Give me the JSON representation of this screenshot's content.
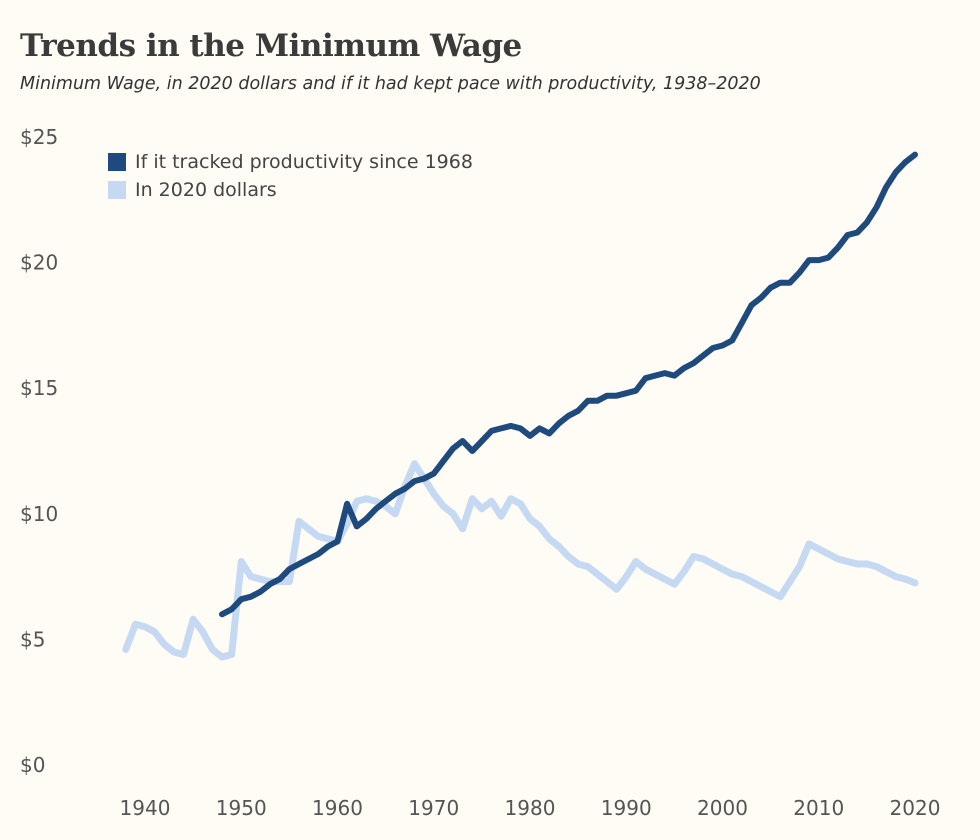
{
  "chart_data": {
    "type": "line",
    "title": "Trends in the Minimum Wage",
    "subtitle": "Minimum Wage, in 2020 dollars and if it had kept pace with productivity, 1938–2020",
    "xlabel": "",
    "ylabel": "",
    "xlim": [
      1936,
      2022
    ],
    "ylim": [
      0,
      25
    ],
    "x_ticks": [
      "1940",
      "1950",
      "1960",
      "1970",
      "1980",
      "1990",
      "2000",
      "2010",
      "2020"
    ],
    "y_ticks": [
      "$0",
      "$5",
      "$10",
      "$15",
      "$20",
      "$25"
    ],
    "grid": false,
    "legend_placement": "top-left",
    "series": [
      {
        "name": "If it tracked productivity since 1968",
        "color": "#1f4a7d",
        "start_year": 1948,
        "values": [
          6.0,
          6.2,
          6.6,
          6.7,
          6.9,
          7.2,
          7.4,
          7.8,
          8.0,
          8.2,
          8.4,
          8.7,
          8.9,
          10.4,
          9.5,
          9.8,
          10.2,
          10.5,
          10.8,
          11.0,
          11.3,
          11.4,
          11.6,
          12.1,
          12.6,
          12.9,
          12.5,
          12.9,
          13.3,
          13.4,
          13.5,
          13.4,
          13.1,
          13.4,
          13.2,
          13.6,
          13.9,
          14.1,
          14.5,
          14.5,
          14.7,
          14.7,
          14.8,
          14.9,
          15.4,
          15.5,
          15.6,
          15.5,
          15.8,
          16.0,
          16.3,
          16.6,
          16.7,
          16.9,
          17.6,
          18.3,
          18.6,
          19.0,
          19.2,
          19.2,
          19.6,
          20.1,
          20.1,
          20.2,
          20.6,
          21.1,
          21.2,
          21.6,
          22.2,
          23.0,
          23.6,
          24.0,
          24.3
        ]
      },
      {
        "name": "In 2020 dollars",
        "color": "#c5daf2",
        "start_year": 1938,
        "values": [
          4.6,
          5.6,
          5.5,
          5.3,
          4.8,
          4.5,
          4.4,
          5.8,
          5.3,
          4.6,
          4.3,
          4.4,
          8.1,
          7.5,
          7.4,
          7.3,
          7.3,
          7.3,
          9.7,
          9.4,
          9.1,
          9.0,
          8.9,
          9.6,
          10.5,
          10.6,
          10.5,
          10.3,
          10.0,
          11.1,
          12.0,
          11.4,
          10.8,
          10.3,
          10.0,
          9.4,
          10.6,
          10.2,
          10.5,
          9.9,
          10.6,
          10.4,
          9.8,
          9.5,
          9.0,
          8.7,
          8.3,
          8.0,
          7.9,
          7.6,
          7.3,
          7.0,
          7.5,
          8.1,
          7.8,
          7.6,
          7.4,
          7.2,
          7.7,
          8.3,
          8.2,
          8.0,
          7.8,
          7.6,
          7.5,
          7.3,
          7.1,
          6.9,
          6.7,
          7.3,
          7.9,
          8.8,
          8.6,
          8.4,
          8.2,
          8.1,
          8.0,
          8.0,
          7.9,
          7.7,
          7.5,
          7.4,
          7.25
        ]
      }
    ]
  }
}
